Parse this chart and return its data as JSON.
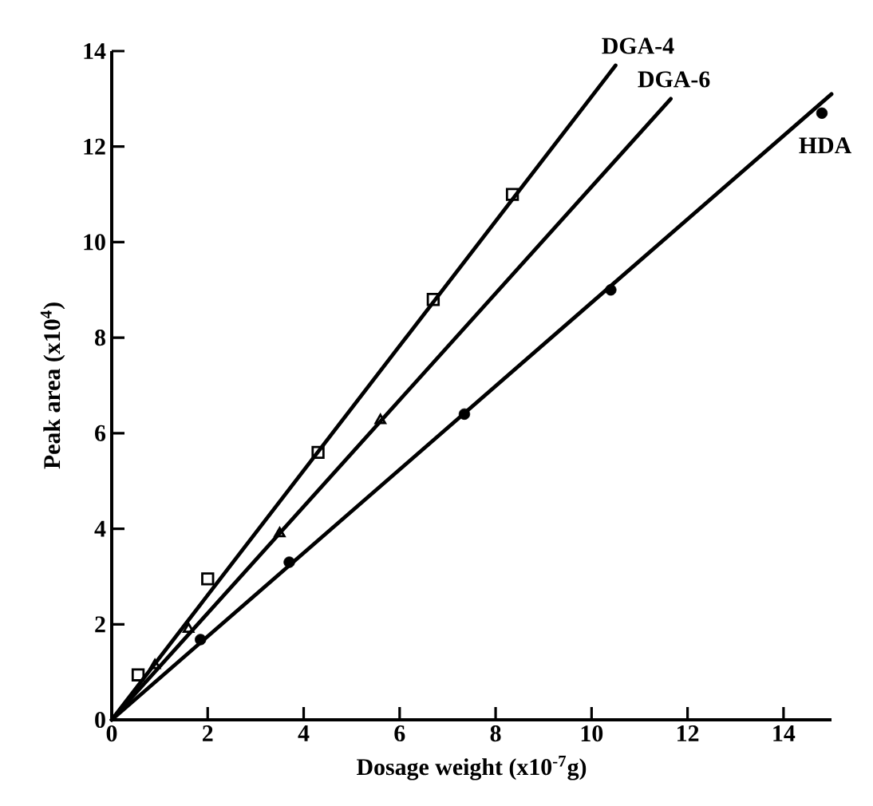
{
  "chart_data": {
    "type": "scatter",
    "xlabel": "Dosage weight (x10$^{-7}$g)",
    "ylabel": "Peak area (x10$^{4}$)",
    "xlim": [
      0,
      15
    ],
    "ylim": [
      0,
      14
    ],
    "xticks": [
      0,
      2,
      4,
      6,
      8,
      10,
      12,
      14
    ],
    "yticks": [
      0,
      2,
      4,
      6,
      8,
      10,
      12,
      14
    ],
    "series": [
      {
        "name": "DGA-4",
        "type": "line",
        "x": [
          0,
          10.5
        ],
        "values": [
          0,
          13.7
        ],
        "color": "#000000",
        "marker": "none",
        "line_style": "solid"
      },
      {
        "name": "DGA-6",
        "type": "line",
        "x": [
          0,
          11.65
        ],
        "values": [
          0,
          13.0
        ],
        "color": "#000000",
        "marker": "none",
        "line_style": "solid"
      },
      {
        "name": "HDA",
        "type": "line",
        "x": [
          0,
          15.0
        ],
        "values": [
          0,
          13.1
        ],
        "color": "#000000",
        "marker": "none",
        "line_style": "solid"
      },
      {
        "x": [
          0.55,
          2.0,
          4.3,
          6.7,
          8.35
        ],
        "values": [
          0.94,
          2.95,
          5.6,
          8.8,
          11.0
        ],
        "color": "#000000",
        "marker": "square"
      },
      {
        "x": [
          0.9,
          1.6,
          3.5,
          5.6
        ],
        "values": [
          1.14,
          1.9,
          3.9,
          6.27
        ],
        "color": "#000000",
        "marker": "triangle"
      },
      {
        "x": [
          1.85,
          3.7,
          7.35,
          10.4,
          14.8
        ],
        "values": [
          1.68,
          3.3,
          6.4,
          9.0,
          12.7
        ],
        "color": "#000000",
        "marker": "circle"
      }
    ]
  }
}
